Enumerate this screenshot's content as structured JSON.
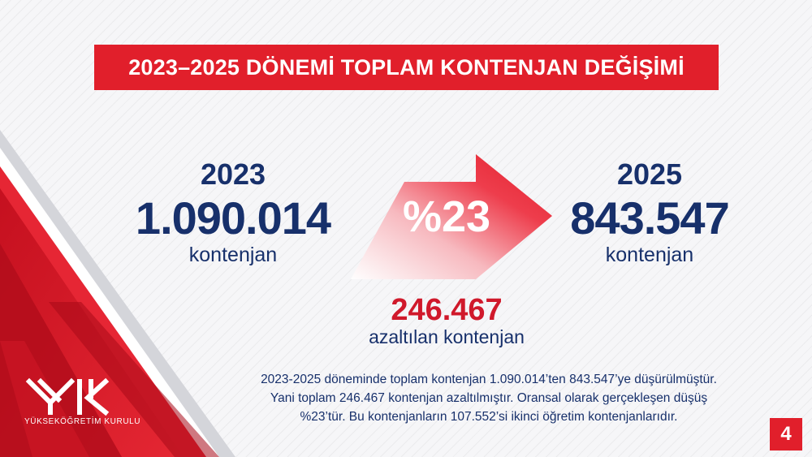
{
  "title": "2023–2025 DÖNEMİ TOPLAM KONTENJAN DEĞİŞİMİ",
  "left": {
    "year": "2023",
    "value": "1.090.014",
    "unit": "kontenjan"
  },
  "right": {
    "year": "2025",
    "value": "843.547",
    "unit": "kontenjan"
  },
  "arrow": {
    "percent": "%23"
  },
  "reduction": {
    "value": "246.467",
    "unit": "azaltılan kontenjan"
  },
  "description": [
    "2023-2025 döneminde toplam kontenjan 1.090.014’ten 843.547’ye düşürülmüştür.",
    "Yani toplam 246.467 kontenjan azaltılmıştır. Oransal olarak gerçekleşen düşüş",
    "%23’tür. Bu kontenjanların 107.552’si ikinci öğretim kontenjanlarıdır."
  ],
  "logo": {
    "text": "YÜKSEKÖĞRETİM KURULU",
    "icon": "yok-logo-icon"
  },
  "page_number": "4",
  "colors": {
    "accent_red": "#e11f2b",
    "navy": "#17306b"
  }
}
